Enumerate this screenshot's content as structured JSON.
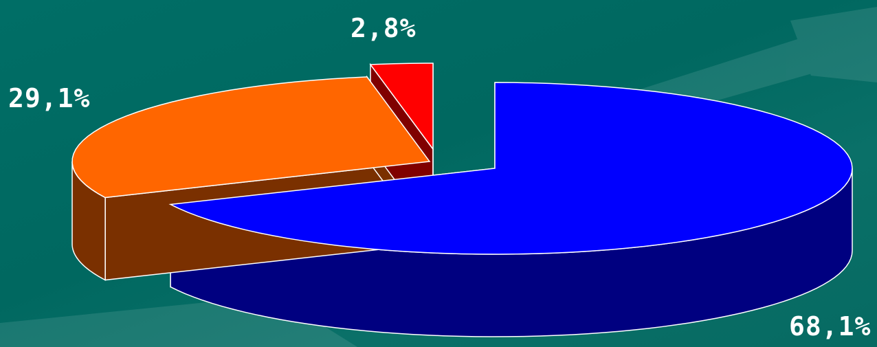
{
  "chart_data": {
    "type": "pie",
    "style": "3d-exploded",
    "title": "",
    "slices": [
      {
        "label": "68,1%",
        "value": 68.1,
        "top_color": "#0000ff",
        "side_color": "#000080"
      },
      {
        "label": "29,1%",
        "value": 29.1,
        "top_color": "#ff6600",
        "side_color": "#7a3000"
      },
      {
        "label": "2,8%",
        "value": 2.8,
        "top_color": "#ff0000",
        "side_color": "#800000"
      }
    ],
    "background_color": "#006b63",
    "label_color": "#ffffff"
  }
}
